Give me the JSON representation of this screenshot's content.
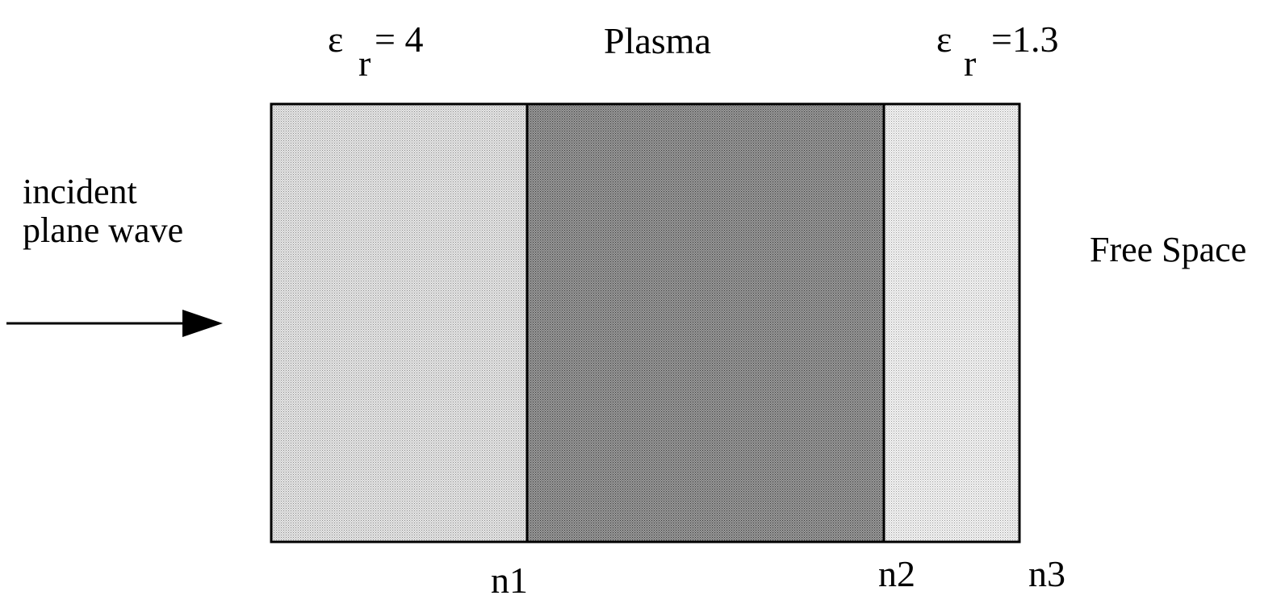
{
  "left_dielectric": {
    "symbol": "ε",
    "subscript": "r",
    "value": "= 4"
  },
  "plasma": {
    "label": "Plasma"
  },
  "right_dielectric": {
    "symbol": "ε",
    "subscript": "r",
    "value": "=1.3"
  },
  "incident_wave": {
    "line1": "incident",
    "line2": "plane wave"
  },
  "free_space": {
    "label": "Free Space"
  },
  "boundaries": {
    "n1": "n1",
    "n2": "n2",
    "n3": "n3"
  },
  "colors": {
    "left_fill": "#c9c9c9",
    "plasma_fill": "#8e8e8e",
    "right_fill": "#e2e2e2",
    "stroke": "#000000"
  }
}
